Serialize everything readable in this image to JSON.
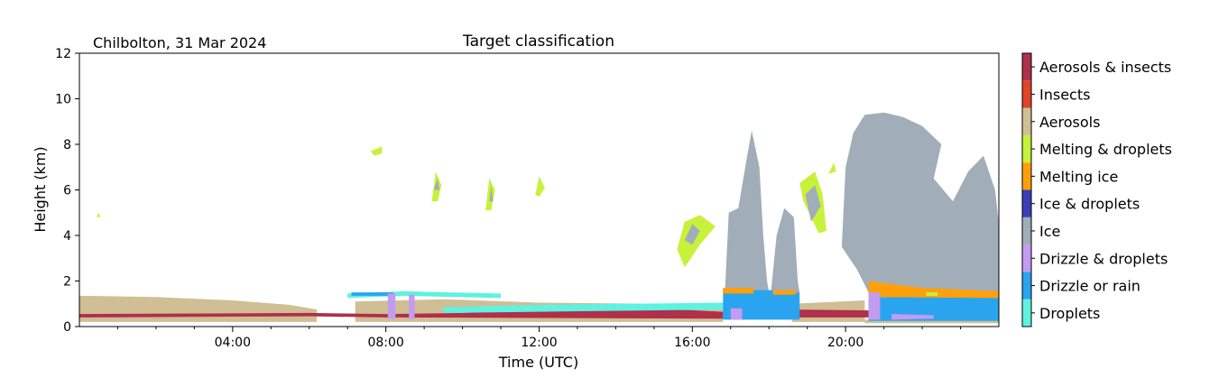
{
  "chart_data": {
    "type": "heatmap",
    "title": "Target classification",
    "site_label": "Chilbolton, 31 Mar 2024",
    "xlabel": "Time (UTC)",
    "ylabel": "Height (km)",
    "xlim_hours": [
      0,
      24
    ],
    "ylim_km": [
      0,
      12
    ],
    "x_ticks": [
      {
        "hour": 4,
        "label": "04:00"
      },
      {
        "hour": 8,
        "label": "08:00"
      },
      {
        "hour": 12,
        "label": "12:00"
      },
      {
        "hour": 16,
        "label": "16:00"
      },
      {
        "hour": 20,
        "label": "20:00"
      }
    ],
    "x_minor_hours": [
      1,
      2,
      3,
      5,
      6,
      7,
      9,
      10,
      11,
      13,
      14,
      15,
      17,
      18,
      19,
      21,
      22,
      23
    ],
    "y_ticks": [
      {
        "km": 0,
        "label": "0"
      },
      {
        "km": 2,
        "label": "2"
      },
      {
        "km": 4,
        "label": "4"
      },
      {
        "km": 6,
        "label": "6"
      },
      {
        "km": 8,
        "label": "8"
      },
      {
        "km": 10,
        "label": "10"
      },
      {
        "km": 12,
        "label": "12"
      }
    ],
    "grid": false,
    "legend": {
      "placement": "right colorbar",
      "classes": [
        {
          "name": "Droplets",
          "color": "#5ef2e0"
        },
        {
          "name": "Drizzle or rain",
          "color": "#2aa4ee"
        },
        {
          "name": "Drizzle & droplets",
          "color": "#c39cf2"
        },
        {
          "name": "Ice",
          "color": "#a1adb8"
        },
        {
          "name": "Ice & droplets",
          "color": "#3a3fb5"
        },
        {
          "name": "Melting ice",
          "color": "#ffa00a"
        },
        {
          "name": "Melting & droplets",
          "color": "#c7f13b"
        },
        {
          "name": "Aerosols",
          "color": "#d0be94"
        },
        {
          "name": "Insects",
          "color": "#e0452a"
        },
        {
          "name": "Aerosols & insects",
          "color": "#b02f4a"
        }
      ]
    },
    "regions": [
      {
        "class": "Aerosols",
        "points": [
          [
            0,
            0.2
          ],
          [
            0,
            1.35
          ],
          [
            2,
            1.3
          ],
          [
            4,
            1.15
          ],
          [
            5.5,
            0.95
          ],
          [
            6.2,
            0.75
          ],
          [
            6.2,
            0.2
          ]
        ]
      },
      {
        "class": "Aerosols",
        "points": [
          [
            7.2,
            0.2
          ],
          [
            7.2,
            1.1
          ],
          [
            9.5,
            1.2
          ],
          [
            12,
            1.05
          ],
          [
            15,
            1.0
          ],
          [
            16.8,
            0.9
          ],
          [
            16.8,
            0.2
          ]
        ]
      },
      {
        "class": "Aerosols",
        "points": [
          [
            18.6,
            0.2
          ],
          [
            18.6,
            1.0
          ],
          [
            20.5,
            1.15
          ],
          [
            20.5,
            0.2
          ]
        ]
      },
      {
        "class": "Aerosols",
        "points": [
          [
            20.5,
            0.15
          ],
          [
            24,
            0.15
          ],
          [
            24,
            0.3
          ],
          [
            20.5,
            0.3
          ]
        ]
      },
      {
        "class": "Aerosols & insects",
        "points": [
          [
            0,
            0.4
          ],
          [
            6,
            0.45
          ],
          [
            8,
            0.4
          ],
          [
            16.8,
            0.35
          ],
          [
            16.8,
            0.65
          ],
          [
            15,
            0.8
          ],
          [
            12,
            0.7
          ],
          [
            10,
            0.6
          ],
          [
            8,
            0.55
          ],
          [
            6,
            0.6
          ],
          [
            0,
            0.55
          ]
        ]
      },
      {
        "class": "Aerosols & insects",
        "points": [
          [
            18.6,
            0.4
          ],
          [
            21,
            0.4
          ],
          [
            21,
            0.7
          ],
          [
            18.6,
            0.75
          ]
        ]
      },
      {
        "class": "Droplets",
        "points": [
          [
            7.0,
            1.25
          ],
          [
            8.5,
            1.35
          ],
          [
            11,
            1.25
          ],
          [
            11,
            1.45
          ],
          [
            8.5,
            1.55
          ],
          [
            7.0,
            1.45
          ]
        ]
      },
      {
        "class": "Droplets",
        "points": [
          [
            9.5,
            0.6
          ],
          [
            16.8,
            0.75
          ],
          [
            16.8,
            1.05
          ],
          [
            12,
            0.95
          ],
          [
            9.5,
            0.85
          ]
        ]
      },
      {
        "class": "Drizzle or rain",
        "points": [
          [
            7.1,
            1.35
          ],
          [
            8.2,
            1.35
          ],
          [
            8.2,
            1.5
          ],
          [
            7.1,
            1.5
          ]
        ]
      },
      {
        "class": "Drizzle & droplets",
        "points": [
          [
            8.05,
            0.35
          ],
          [
            8.25,
            0.35
          ],
          [
            8.25,
            1.45
          ],
          [
            8.05,
            1.45
          ]
        ]
      },
      {
        "class": "Drizzle & droplets",
        "points": [
          [
            8.6,
            0.35
          ],
          [
            8.75,
            0.35
          ],
          [
            8.75,
            1.4
          ],
          [
            8.6,
            1.4
          ]
        ]
      },
      {
        "class": "Ice",
        "points": [
          [
            16.85,
            1.5
          ],
          [
            16.95,
            5.0
          ],
          [
            17.2,
            5.2
          ],
          [
            17.4,
            7.2
          ],
          [
            17.55,
            8.6
          ],
          [
            17.75,
            7.0
          ],
          [
            17.85,
            4.0
          ],
          [
            17.95,
            2.0
          ],
          [
            18.0,
            1.5
          ]
        ]
      },
      {
        "class": "Ice",
        "points": [
          [
            18.05,
            1.5
          ],
          [
            18.2,
            4.0
          ],
          [
            18.4,
            5.2
          ],
          [
            18.65,
            4.8
          ],
          [
            18.75,
            2.0
          ],
          [
            18.8,
            1.5
          ]
        ]
      },
      {
        "class": "Ice",
        "points": [
          [
            19.9,
            3.5
          ],
          [
            20.0,
            7.0
          ],
          [
            20.2,
            8.5
          ],
          [
            20.5,
            9.3
          ],
          [
            21.0,
            9.4
          ],
          [
            21.5,
            9.2
          ],
          [
            22.0,
            8.8
          ],
          [
            22.5,
            8.0
          ],
          [
            22.3,
            6.5
          ],
          [
            22.8,
            5.5
          ],
          [
            23.2,
            6.8
          ],
          [
            23.6,
            7.5
          ],
          [
            23.9,
            6.0
          ],
          [
            24,
            4.5
          ],
          [
            24,
            1.5
          ],
          [
            20.6,
            1.5
          ],
          [
            20.3,
            2.5
          ]
        ]
      },
      {
        "class": "Drizzle or rain",
        "points": [
          [
            16.8,
            0.3
          ],
          [
            18.1,
            0.3
          ],
          [
            18.1,
            1.6
          ],
          [
            16.8,
            1.6
          ]
        ]
      },
      {
        "class": "Drizzle or rain",
        "points": [
          [
            18.1,
            0.3
          ],
          [
            18.8,
            0.3
          ],
          [
            18.8,
            1.5
          ],
          [
            18.1,
            1.5
          ]
        ]
      },
      {
        "class": "Drizzle or rain",
        "points": [
          [
            20.6,
            0.25
          ],
          [
            24,
            0.25
          ],
          [
            24,
            1.3
          ],
          [
            20.6,
            1.3
          ]
        ]
      },
      {
        "class": "Melting ice",
        "points": [
          [
            20.6,
            1.3
          ],
          [
            24,
            1.25
          ],
          [
            24,
            1.55
          ],
          [
            22,
            1.7
          ],
          [
            20.6,
            2.0
          ]
        ]
      },
      {
        "class": "Melting ice",
        "points": [
          [
            16.8,
            1.45
          ],
          [
            17.6,
            1.45
          ],
          [
            17.6,
            1.7
          ],
          [
            16.8,
            1.7
          ]
        ]
      },
      {
        "class": "Melting ice",
        "points": [
          [
            18.1,
            1.4
          ],
          [
            18.7,
            1.4
          ],
          [
            18.7,
            1.6
          ],
          [
            18.1,
            1.6
          ]
        ]
      },
      {
        "class": "Melting & droplets",
        "points": [
          [
            22.1,
            1.35
          ],
          [
            22.4,
            1.35
          ],
          [
            22.4,
            1.5
          ],
          [
            22.1,
            1.5
          ]
        ]
      },
      {
        "class": "Drizzle & droplets",
        "points": [
          [
            17.0,
            0.3
          ],
          [
            17.3,
            0.3
          ],
          [
            17.3,
            0.8
          ],
          [
            17.0,
            0.8
          ]
        ]
      },
      {
        "class": "Drizzle & droplets",
        "points": [
          [
            20.6,
            0.3
          ],
          [
            20.9,
            0.3
          ],
          [
            20.9,
            1.5
          ],
          [
            20.6,
            1.5
          ]
        ]
      },
      {
        "class": "Drizzle & droplets",
        "points": [
          [
            21.2,
            0.3
          ],
          [
            22.3,
            0.35
          ],
          [
            22.3,
            0.5
          ],
          [
            21.2,
            0.55
          ]
        ]
      },
      {
        "class": "Melting & droplets",
        "points": [
          [
            9.2,
            5.5
          ],
          [
            9.3,
            6.8
          ],
          [
            9.45,
            6.2
          ],
          [
            9.35,
            5.5
          ]
        ]
      },
      {
        "class": "Melting & droplets",
        "points": [
          [
            10.6,
            5.1
          ],
          [
            10.7,
            6.5
          ],
          [
            10.85,
            6.0
          ],
          [
            10.75,
            5.1
          ]
        ]
      },
      {
        "class": "Melting & droplets",
        "points": [
          [
            11.9,
            5.8
          ],
          [
            12.0,
            6.6
          ],
          [
            12.15,
            6.1
          ],
          [
            12.0,
            5.7
          ]
        ]
      },
      {
        "class": "Melting & droplets",
        "points": [
          [
            15.6,
            3.4
          ],
          [
            15.8,
            4.6
          ],
          [
            16.2,
            4.9
          ],
          [
            16.6,
            4.4
          ],
          [
            16.2,
            3.6
          ],
          [
            15.8,
            2.6
          ]
        ]
      },
      {
        "class": "Melting & droplets",
        "points": [
          [
            18.8,
            6.3
          ],
          [
            19.2,
            6.8
          ],
          [
            19.4,
            5.8
          ],
          [
            19.5,
            4.2
          ],
          [
            19.3,
            4.1
          ],
          [
            18.9,
            5.5
          ]
        ]
      },
      {
        "class": "Melting & droplets",
        "points": [
          [
            7.6,
            7.7
          ],
          [
            7.9,
            7.9
          ],
          [
            7.9,
            7.6
          ],
          [
            7.7,
            7.5
          ]
        ]
      },
      {
        "class": "Melting & droplets",
        "points": [
          [
            0.45,
            4.8
          ],
          [
            0.5,
            5.0
          ],
          [
            0.55,
            4.8
          ]
        ]
      },
      {
        "class": "Melting & droplets",
        "points": [
          [
            19.55,
            6.7
          ],
          [
            19.7,
            7.2
          ],
          [
            19.75,
            6.8
          ]
        ]
      },
      {
        "class": "Ice",
        "points": [
          [
            9.25,
            6.0
          ],
          [
            9.35,
            6.5
          ],
          [
            9.4,
            6.0
          ]
        ]
      },
      {
        "class": "Ice",
        "points": [
          [
            10.7,
            5.5
          ],
          [
            10.75,
            6.2
          ],
          [
            10.8,
            5.5
          ]
        ]
      },
      {
        "class": "Ice",
        "points": [
          [
            15.8,
            3.8
          ],
          [
            16.0,
            4.5
          ],
          [
            16.2,
            4.2
          ],
          [
            16.0,
            3.6
          ]
        ]
      },
      {
        "class": "Ice",
        "points": [
          [
            18.95,
            5.8
          ],
          [
            19.2,
            6.2
          ],
          [
            19.35,
            5.3
          ],
          [
            19.1,
            4.6
          ]
        ]
      }
    ]
  }
}
